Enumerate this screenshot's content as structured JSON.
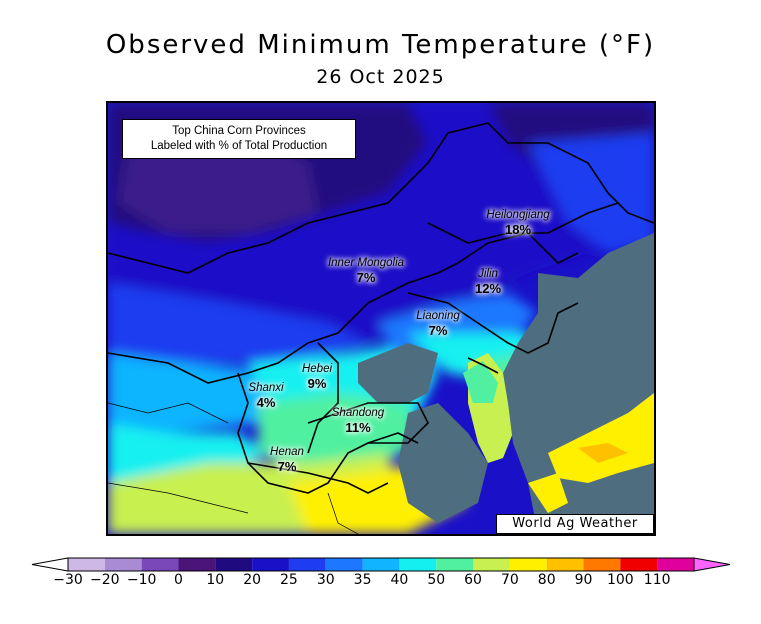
{
  "title": "Observed Minimum Temperature (°F)",
  "date": "26 Oct 2025",
  "info_box": {
    "line1": "Top China Corn Provinces",
    "line2": "Labeled with % of Total Production"
  },
  "credit": "World Ag Weather",
  "provinces": [
    {
      "name": "Heilongjiang",
      "pct": "18%"
    },
    {
      "name": "Inner Mongolia",
      "pct": "7%"
    },
    {
      "name": "Jilin",
      "pct": "12%"
    },
    {
      "name": "Liaoning",
      "pct": "7%"
    },
    {
      "name": "Hebei",
      "pct": "9%"
    },
    {
      "name": "Shanxi",
      "pct": "4%"
    },
    {
      "name": "Shandong",
      "pct": "11%"
    },
    {
      "name": "Henan",
      "pct": "7%"
    }
  ],
  "colorbar": {
    "ticks": [
      "−30",
      "−20",
      "−10",
      "0",
      "10",
      "20",
      "25",
      "30",
      "35",
      "40",
      "50",
      "60",
      "70",
      "80",
      "90",
      "100",
      "110"
    ],
    "colors": [
      "#ffffff",
      "#cdb8e6",
      "#a98bd3",
      "#7a48b8",
      "#4a1478",
      "#200a80",
      "#1a10c8",
      "#1e3cf0",
      "#1e78ff",
      "#10b4ff",
      "#14f0f0",
      "#50f0a0",
      "#c8f050",
      "#fff000",
      "#ffc000",
      "#ff7800",
      "#f00000",
      "#e0009c",
      "#ff64ff"
    ]
  }
}
